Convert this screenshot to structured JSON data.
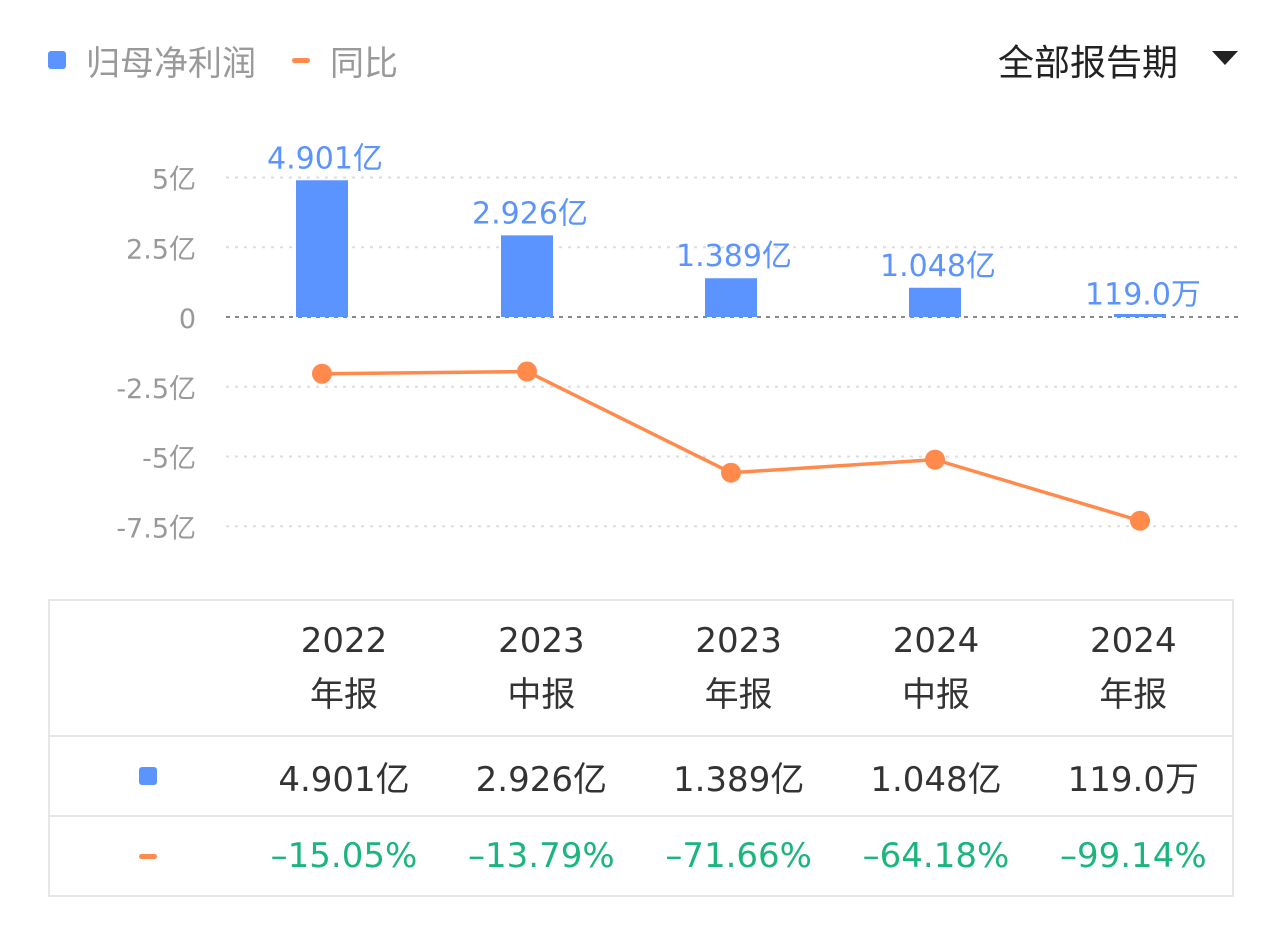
{
  "legend": {
    "bar_label": "归母净利润",
    "line_label": "同比"
  },
  "period_select": {
    "label": "全部报告期"
  },
  "colors": {
    "bar": "#5b93ff",
    "line": "#ff8a4c",
    "positive_green": "#1bb57e",
    "grid": "#dddddd",
    "axis_text": "#999999"
  },
  "chart_data": {
    "type": "bar",
    "categories": [
      "2022年报",
      "2023中报",
      "2023年报",
      "2024中报",
      "2024年报"
    ],
    "series": [
      {
        "name": "归母净利润",
        "type": "bar",
        "unit": "亿",
        "values": [
          4.901,
          2.926,
          1.389,
          1.048,
          0.0119
        ],
        "labels": [
          "4.901亿",
          "2.926亿",
          "1.389亿",
          "1.048亿",
          "119.0万"
        ]
      },
      {
        "name": "同比",
        "type": "line",
        "unit": "%",
        "values": [
          -15.05,
          -13.79,
          -71.66,
          -64.18,
          -99.14
        ]
      }
    ],
    "y_ticks": [
      5,
      2.5,
      0,
      -2.5,
      -5,
      -7.5
    ],
    "y_tick_labels": [
      "5亿",
      "2.5亿",
      "0",
      "-2.5亿",
      "-5亿",
      "-7.5亿"
    ],
    "ylim": [
      -7.5,
      5
    ],
    "grid": true,
    "legend_position": "top-left"
  },
  "table": {
    "headers": [
      {
        "year": "2022",
        "period": "年报"
      },
      {
        "year": "2023",
        "period": "中报"
      },
      {
        "year": "2023",
        "period": "年报"
      },
      {
        "year": "2024",
        "period": "中报"
      },
      {
        "year": "2024",
        "period": "年报"
      }
    ],
    "profit_row": [
      "4.901亿",
      "2.926亿",
      "1.389亿",
      "1.048亿",
      "119.0万"
    ],
    "yoy_row": [
      "–15.05%",
      "–13.79%",
      "–71.66%",
      "–64.18%",
      "–99.14%"
    ]
  }
}
